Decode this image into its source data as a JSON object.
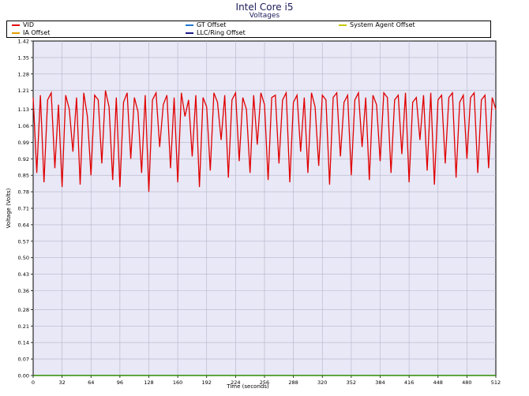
{
  "chart_data": {
    "type": "line",
    "title": "Intel Core i5",
    "subtitle": "Voltages",
    "xlabel": "Time (seconds)",
    "ylabel": "Voltage (Volts)",
    "xlim": [
      0,
      512
    ],
    "ylim": [
      0.0,
      1.42
    ],
    "x_ticks": [
      0,
      32,
      64,
      96,
      128,
      160,
      192,
      224,
      256,
      288,
      320,
      352,
      384,
      416,
      448,
      480,
      512
    ],
    "y_ticks": [
      "0.00",
      "0.07",
      "0.14",
      "0.21",
      "0.28",
      "0.36",
      "0.43",
      "0.50",
      "0.57",
      "0.64",
      "0.71",
      "0.78",
      "0.85",
      "0.92",
      "0.99",
      "1.06",
      "1.13",
      "1.21",
      "1.28",
      "1.35",
      "1.42"
    ],
    "grid": true,
    "legend_position": "top",
    "colors": {
      "background": "#e8e8f6",
      "grid": "#b4b4cc",
      "VID": "#e00000",
      "GT Offset": "#1f77d0",
      "System Agent Offset": "#c8c800",
      "IA Offset": "#e0a000",
      "LLC/Ring Offset": "#1a1a8a",
      "baseline": "#2e8b00"
    },
    "series": [
      {
        "name": "VID",
        "x": [
          0,
          4,
          8,
          12,
          16,
          20,
          24,
          28,
          32,
          36,
          40,
          44,
          48,
          52,
          56,
          60,
          64,
          68,
          72,
          76,
          80,
          84,
          88,
          92,
          96,
          100,
          104,
          108,
          112,
          116,
          120,
          124,
          128,
          132,
          136,
          140,
          144,
          148,
          152,
          156,
          160,
          164,
          168,
          172,
          176,
          180,
          184,
          188,
          192,
          196,
          200,
          204,
          208,
          212,
          216,
          220,
          224,
          228,
          232,
          236,
          240,
          244,
          248,
          252,
          256,
          260,
          264,
          268,
          272,
          276,
          280,
          284,
          288,
          292,
          296,
          300,
          304,
          308,
          312,
          316,
          320,
          324,
          328,
          332,
          336,
          340,
          344,
          348,
          352,
          356,
          360,
          364,
          368,
          372,
          376,
          380,
          384,
          388,
          392,
          396,
          400,
          404,
          408,
          412,
          416,
          420,
          424,
          428,
          432,
          436,
          440,
          444,
          448,
          452,
          456,
          460,
          464,
          468,
          472,
          476,
          480,
          484,
          488,
          492,
          496,
          500,
          504,
          508,
          512
        ],
        "values": [
          1.18,
          0.86,
          1.19,
          0.82,
          1.17,
          1.2,
          0.88,
          1.15,
          0.8,
          1.19,
          1.13,
          0.95,
          1.18,
          0.81,
          1.2,
          1.1,
          0.85,
          1.19,
          1.17,
          0.9,
          1.21,
          1.14,
          0.83,
          1.18,
          0.8,
          1.16,
          1.2,
          0.92,
          1.18,
          1.12,
          0.86,
          1.19,
          0.78,
          1.17,
          1.2,
          0.97,
          1.15,
          1.19,
          0.88,
          1.18,
          0.82,
          1.2,
          1.1,
          1.17,
          0.93,
          1.19,
          0.8,
          1.18,
          1.14,
          0.87,
          1.2,
          1.16,
          1.0,
          1.19,
          0.84,
          1.17,
          1.2,
          0.91,
          1.18,
          1.13,
          0.86,
          1.19,
          0.98,
          1.2,
          1.15,
          0.83,
          1.18,
          1.19,
          0.9,
          1.17,
          1.2,
          0.82,
          1.16,
          1.19,
          0.95,
          1.18,
          0.86,
          1.2,
          1.14,
          0.89,
          1.19,
          1.17,
          0.81,
          1.18,
          1.2,
          0.93,
          1.16,
          1.19,
          0.85,
          1.17,
          1.2,
          0.97,
          1.18,
          0.83,
          1.19,
          1.15,
          0.91,
          1.2,
          1.18,
          0.86,
          1.17,
          1.19,
          0.94,
          1.2,
          0.82,
          1.16,
          1.18,
          1.0,
          1.19,
          0.87,
          1.2,
          0.81,
          1.17,
          1.19,
          0.9,
          1.18,
          1.2,
          0.84,
          1.16,
          1.19,
          0.92,
          1.18,
          1.2,
          0.86,
          1.17,
          1.19,
          0.88,
          1.18,
          1.13
        ]
      },
      {
        "name": "GT Offset",
        "values": [
          0.0,
          0.0
        ]
      },
      {
        "name": "System Agent Offset",
        "values": [
          0.0,
          0.0
        ]
      },
      {
        "name": "IA Offset",
        "values": [
          0.0,
          0.0
        ]
      },
      {
        "name": "LLC/Ring Offset",
        "values": [
          0.0,
          0.0
        ]
      }
    ]
  }
}
